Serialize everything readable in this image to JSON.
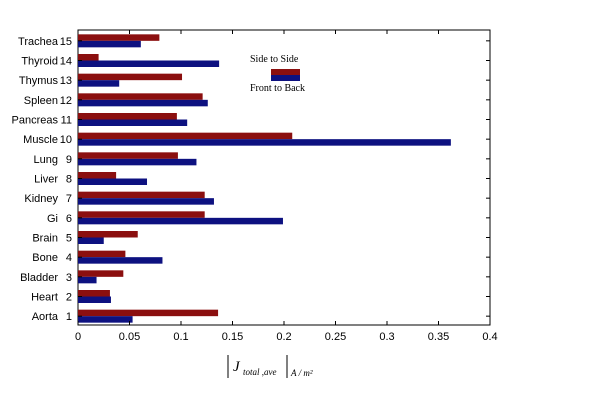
{
  "chart_data": {
    "type": "bar",
    "orientation": "horizontal",
    "categories": [
      "Aorta",
      "Heart",
      "Bladder",
      "Bone",
      "Brain",
      "Gi",
      "Kidney",
      "Liver",
      "Lung",
      "Muscle",
      "Pancreas",
      "Spleen",
      "Thymus",
      "Thyroid",
      "Trachea"
    ],
    "category_indices": [
      "1",
      "2",
      "3",
      "4",
      "5",
      "6",
      "7",
      "8",
      "9",
      "10",
      "11",
      "12",
      "13",
      "14",
      "15"
    ],
    "series": [
      {
        "name": "Side to Side",
        "color": "#8b0f0f",
        "values": [
          0.136,
          0.031,
          0.044,
          0.046,
          0.058,
          0.123,
          0.123,
          0.037,
          0.097,
          0.208,
          0.096,
          0.121,
          0.101,
          0.02,
          0.079
        ]
      },
      {
        "name": "Front to Back",
        "color": "#0d1180",
        "values": [
          0.053,
          0.032,
          0.018,
          0.082,
          0.025,
          0.199,
          0.132,
          0.067,
          0.115,
          0.362,
          0.106,
          0.126,
          0.04,
          0.137,
          0.061
        ]
      }
    ],
    "xlim": [
      0,
      0.4
    ],
    "xticks": [
      "0",
      "0.05",
      "0.1",
      "0.15",
      "0.2",
      "0.25",
      "0.3",
      "0.35",
      "0.4"
    ],
    "xlabel": {
      "main": "J",
      "subscript": "total ,ave",
      "unit": "A / m²"
    },
    "ylabel": "",
    "title": "",
    "grid": false,
    "legend_position": "top-right"
  }
}
